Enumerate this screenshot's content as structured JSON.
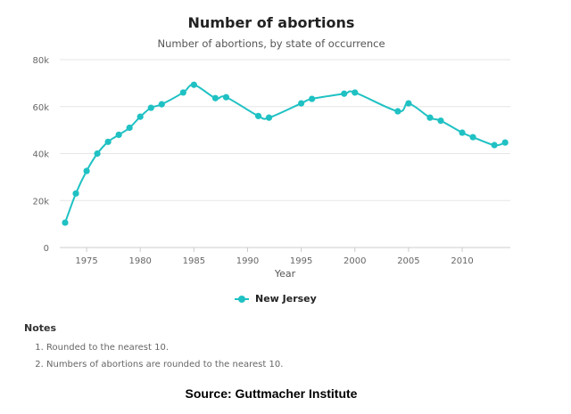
{
  "chart_data": {
    "type": "line",
    "title": "Number of abortions",
    "subtitle": "Number of abortions, by state of occurrence",
    "xlabel": "Year",
    "ylabel": "",
    "ylim": [
      0,
      80000
    ],
    "xlim": [
      1973,
      2014
    ],
    "yticks": [
      {
        "v": 0,
        "label": "0"
      },
      {
        "v": 20000,
        "label": "20k"
      },
      {
        "v": 40000,
        "label": "40k"
      },
      {
        "v": 60000,
        "label": "60k"
      },
      {
        "v": 80000,
        "label": "80k"
      }
    ],
    "xticks": [
      1975,
      1980,
      1985,
      1990,
      1995,
      2000,
      2005,
      2010
    ],
    "grid": true,
    "legend": "bottom",
    "series": [
      {
        "name": "New Jersey",
        "color": "#1fc1c3",
        "x": [
          1973,
          1974,
          1975,
          1976,
          1977,
          1978,
          1979,
          1980,
          1981,
          1982,
          1984,
          1985,
          1987,
          1988,
          1991,
          1992,
          1995,
          1996,
          1999,
          2000,
          2004,
          2005,
          2007,
          2008,
          2010,
          2011,
          2013,
          2014
        ],
        "values": [
          10600,
          23000,
          32600,
          40000,
          45000,
          48000,
          51000,
          55700,
          59500,
          61000,
          66000,
          69300,
          63600,
          64000,
          56000,
          55300,
          61400,
          63300,
          65500,
          66000,
          58000,
          61400,
          55300,
          54000,
          48900,
          47000,
          43600,
          44700
        ]
      }
    ]
  },
  "notes": {
    "heading": "Notes",
    "items": [
      "Rounded to the nearest 10.",
      "Numbers of abortions are rounded to the nearest 10."
    ]
  },
  "source": "Source: Guttmacher Institute"
}
